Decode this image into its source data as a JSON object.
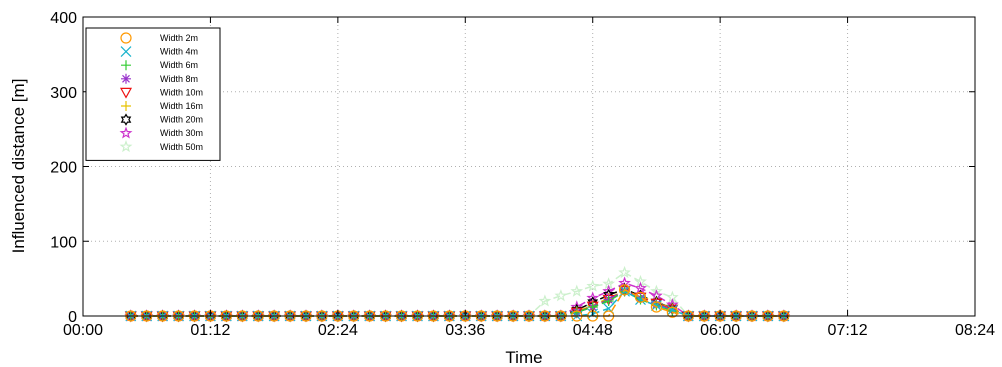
{
  "chart_data": {
    "type": "line",
    "xlabel": "Time",
    "ylabel": "Influenced distance [m]",
    "x_ticks": [
      "00:00",
      "01:12",
      "02:24",
      "03:36",
      "04:48",
      "06:00",
      "07:12",
      "08:24"
    ],
    "x_tick_values": [
      0,
      72,
      144,
      216,
      288,
      360,
      432,
      504
    ],
    "xlim": [
      0,
      504
    ],
    "ylim": [
      0,
      400
    ],
    "y_ticks": [
      0,
      100,
      200,
      300,
      400
    ],
    "grid": true,
    "legend_position": "top-left",
    "x": [
      27,
      36,
      45,
      54,
      63,
      72,
      81,
      90,
      99,
      108,
      117,
      126,
      135,
      144,
      153,
      162,
      171,
      180,
      189,
      198,
      207,
      216,
      225,
      234,
      243,
      252,
      261,
      270,
      279,
      288,
      297,
      306,
      315,
      324,
      333,
      342,
      351,
      360,
      369,
      378,
      387,
      396
    ],
    "series": [
      {
        "name": "Width 2m",
        "color": "#ff9900",
        "marker": "circle",
        "values": [
          0,
          0,
          0,
          0,
          0,
          0,
          0,
          0,
          0,
          0,
          0,
          0,
          0,
          0,
          0,
          0,
          0,
          0,
          0,
          0,
          0,
          0,
          0,
          0,
          0,
          0,
          0,
          0,
          0,
          0,
          0,
          35,
          25,
          12,
          5,
          0,
          0,
          0,
          0,
          0,
          0,
          0
        ]
      },
      {
        "name": "Width 4m",
        "color": "#19b3cc",
        "marker": "x",
        "values": [
          0,
          0,
          0,
          0,
          0,
          0,
          0,
          0,
          0,
          0,
          0,
          0,
          0,
          0,
          0,
          0,
          0,
          0,
          0,
          0,
          0,
          0,
          0,
          0,
          0,
          0,
          0,
          0,
          0,
          3,
          10,
          33,
          22,
          14,
          8,
          0,
          0,
          0,
          0,
          0,
          0,
          0
        ]
      },
      {
        "name": "Width 6m",
        "color": "#33cc33",
        "marker": "plus",
        "values": [
          0,
          0,
          0,
          0,
          0,
          0,
          0,
          0,
          0,
          0,
          0,
          0,
          0,
          0,
          0,
          0,
          0,
          0,
          0,
          0,
          0,
          0,
          0,
          0,
          0,
          0,
          0,
          0,
          5,
          12,
          20,
          33,
          22,
          14,
          7,
          0,
          0,
          0,
          0,
          0,
          0,
          0
        ]
      },
      {
        "name": "Width 8m",
        "color": "#9933cc",
        "marker": "star",
        "values": [
          0,
          0,
          0,
          0,
          0,
          0,
          0,
          0,
          0,
          0,
          0,
          0,
          0,
          0,
          0,
          0,
          0,
          0,
          0,
          0,
          0,
          0,
          0,
          0,
          0,
          0,
          0,
          0,
          5,
          12,
          22,
          34,
          24,
          16,
          8,
          0,
          0,
          0,
          0,
          0,
          0,
          0
        ]
      },
      {
        "name": "Width 10m",
        "color": "#ee1111",
        "marker": "triangle-down",
        "values": [
          0,
          0,
          0,
          0,
          0,
          0,
          0,
          0,
          0,
          0,
          0,
          0,
          0,
          0,
          0,
          0,
          0,
          0,
          0,
          0,
          0,
          0,
          0,
          0,
          0,
          0,
          0,
          0,
          5,
          13,
          22,
          34,
          25,
          17,
          9,
          0,
          0,
          0,
          0,
          0,
          0,
          0
        ]
      },
      {
        "name": "Width 16m",
        "color": "#e6c200",
        "marker": "plus",
        "values": [
          0,
          0,
          0,
          0,
          0,
          0,
          0,
          0,
          0,
          0,
          0,
          0,
          0,
          0,
          0,
          0,
          0,
          0,
          0,
          0,
          0,
          0,
          0,
          0,
          0,
          0,
          0,
          0,
          6,
          14,
          24,
          34,
          26,
          18,
          10,
          0,
          0,
          0,
          0,
          0,
          0,
          0
        ]
      },
      {
        "name": "Width 20m",
        "color": "#000000",
        "marker": "hexagram",
        "values": [
          0,
          0,
          0,
          0,
          0,
          0,
          0,
          0,
          0,
          0,
          0,
          0,
          0,
          0,
          0,
          0,
          0,
          0,
          0,
          0,
          0,
          0,
          0,
          0,
          0,
          0,
          0,
          0,
          8,
          18,
          28,
          36,
          27,
          19,
          10,
          0,
          0,
          0,
          0,
          0,
          0,
          0
        ]
      },
      {
        "name": "Width 30m",
        "color": "#cc33cc",
        "marker": "pentagram",
        "values": [
          0,
          0,
          0,
          0,
          0,
          0,
          0,
          0,
          0,
          0,
          0,
          0,
          0,
          0,
          0,
          0,
          0,
          0,
          0,
          0,
          0,
          0,
          0,
          0,
          0,
          0,
          0,
          0,
          12,
          24,
          33,
          44,
          37,
          27,
          15,
          0,
          0,
          0,
          0,
          0,
          0,
          0
        ]
      },
      {
        "name": "Width 50m",
        "color": "#ccf0cc",
        "marker": "pentagram",
        "values": [
          0,
          0,
          0,
          0,
          0,
          0,
          0,
          0,
          0,
          0,
          0,
          0,
          0,
          0,
          0,
          0,
          0,
          0,
          0,
          0,
          0,
          0,
          0,
          0,
          0,
          0,
          20,
          27,
          33,
          40,
          43,
          58,
          46,
          33,
          25,
          0,
          0,
          0,
          0,
          0,
          0,
          0
        ]
      }
    ]
  }
}
